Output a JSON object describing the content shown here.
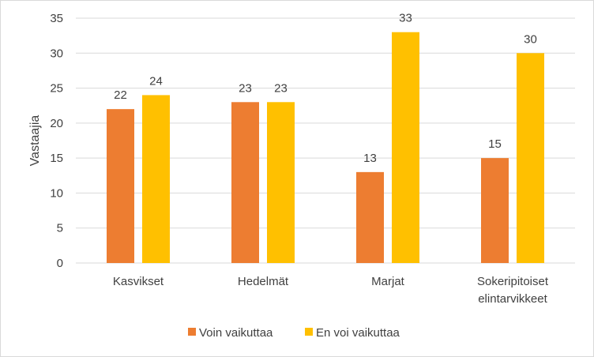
{
  "chart_data": {
    "type": "bar",
    "categories": [
      [
        "Kasvikset"
      ],
      [
        "Hedelmät"
      ],
      [
        "Marjat"
      ],
      [
        "Sokeripitoiset",
        "elintarvikkeet"
      ]
    ],
    "series": [
      {
        "name": "Voin vaikuttaa",
        "values": [
          22,
          23,
          13,
          15
        ],
        "color": "#ed7d31"
      },
      {
        "name": "En voi vaikuttaa",
        "values": [
          24,
          23,
          33,
          30
        ],
        "color": "#ffc000"
      }
    ],
    "ylabel": "Vastaajia",
    "xlabel": "",
    "ylim": [
      0,
      35
    ],
    "yticks": [
      0,
      5,
      10,
      15,
      20,
      25,
      30,
      35
    ],
    "grid": true,
    "legend_position": "bottom",
    "data_labels": true
  }
}
